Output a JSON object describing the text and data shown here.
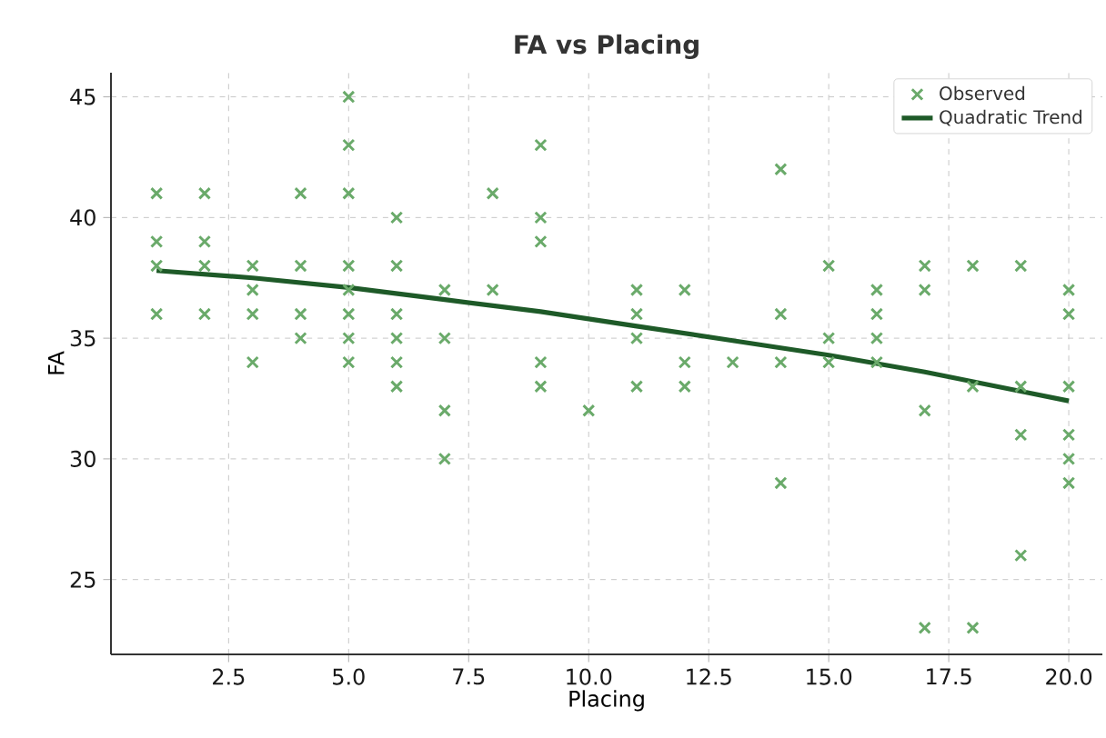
{
  "chart_data": {
    "type": "scatter",
    "title": "FA vs Placing",
    "xlabel": "Placing",
    "ylabel": "FA",
    "xlim": [
      0.05,
      20.7
    ],
    "ylim": [
      21.9,
      46.0
    ],
    "xticks": [
      {
        "value": 2.5,
        "label": "2.5"
      },
      {
        "value": 5,
        "label": "5.0"
      },
      {
        "value": 7.5,
        "label": "7.5"
      },
      {
        "value": 10,
        "label": "10.0"
      },
      {
        "value": 12.5,
        "label": "12.5"
      },
      {
        "value": 15,
        "label": "15.0"
      },
      {
        "value": 17.5,
        "label": "17.5"
      },
      {
        "value": 20,
        "label": "20.0"
      }
    ],
    "yticks": [
      25,
      30,
      35,
      40,
      45
    ],
    "grid": true,
    "legend": "top right",
    "series": [
      {
        "name": "Observed",
        "marker": "cross",
        "color": "#6aaa6a",
        "x": [
          1,
          1,
          1,
          1,
          2,
          2,
          2,
          2,
          3,
          3,
          3,
          3,
          4,
          4,
          4,
          4,
          5,
          5,
          5,
          5,
          5,
          5,
          5,
          5,
          6,
          6,
          6,
          6,
          6,
          6,
          7,
          7,
          7,
          7,
          8,
          8,
          9,
          9,
          9,
          9,
          9,
          10,
          11,
          11,
          11,
          11,
          12,
          12,
          12,
          13,
          14,
          14,
          14,
          14,
          15,
          15,
          15,
          16,
          16,
          16,
          16,
          17,
          17,
          17,
          17,
          18,
          18,
          18,
          19,
          19,
          19,
          19,
          20,
          20,
          20,
          20,
          20,
          20
        ],
        "values": [
          41,
          39,
          38,
          36,
          41,
          39,
          38,
          36,
          38,
          37,
          36,
          34,
          41,
          38,
          36,
          35,
          45,
          43,
          41,
          38,
          37,
          36,
          35,
          34,
          40,
          38,
          36,
          35,
          34,
          33,
          37,
          35,
          32,
          30,
          41,
          37,
          43,
          40,
          39,
          34,
          33,
          32,
          37,
          36,
          35,
          33,
          37,
          34,
          33,
          34,
          42,
          36,
          34,
          29,
          38,
          35,
          34,
          37,
          36,
          35,
          34,
          38,
          37,
          32,
          23,
          38,
          33,
          23,
          38,
          33,
          31,
          26,
          37,
          36,
          33,
          31,
          30,
          29
        ]
      },
      {
        "name": "Quadratic Trend",
        "type": "line",
        "marker": "none",
        "line_style": "solid",
        "color": "#1e5a28",
        "x": [
          1,
          3,
          5,
          7,
          9,
          11,
          13,
          15,
          17,
          19,
          20
        ],
        "values": [
          37.8,
          37.5,
          37.1,
          36.6,
          36.1,
          35.5,
          34.9,
          34.3,
          33.6,
          32.8,
          32.4
        ]
      }
    ]
  }
}
